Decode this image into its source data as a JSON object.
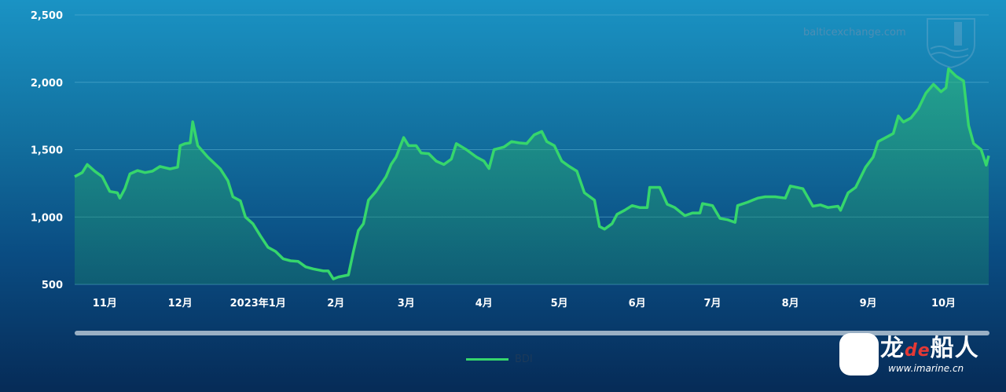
{
  "watermark": "balticexchange.com",
  "imarine_logo": {
    "text": "龙de船人",
    "url": "www.imarine.cn"
  },
  "colors": {
    "line": "#36d66c",
    "grid": "#5fb4d6",
    "bg_top": "#1a93c4",
    "bg_bottom": "#062b57"
  },
  "chart_data": {
    "type": "area",
    "title": "",
    "xlabel": "",
    "ylabel": "",
    "ylim": [
      500,
      2500
    ],
    "yticks": [
      500,
      1000,
      1500,
      2000,
      2500
    ],
    "ytick_labels": [
      "500",
      "1,000",
      "1,500",
      "2,000",
      "2,500"
    ],
    "xlim": [
      "2022-10-20",
      "2023-10-19"
    ],
    "xticks": [
      "2022-11-01",
      "2022-12-01",
      "2023-01-01",
      "2023-02-01",
      "2023-03-01",
      "2023-04-01",
      "2023-05-01",
      "2023-06-01",
      "2023-07-01",
      "2023-08-01",
      "2023-09-01",
      "2023-10-01"
    ],
    "xtick_labels": [
      "11月",
      "12月",
      "2023年1月",
      "2月",
      "3月",
      "4月",
      "5月",
      "6月",
      "7月",
      "8月",
      "9月",
      "10月"
    ],
    "grid": true,
    "legend": "bottom-center",
    "series": [
      {
        "name": "BDI",
        "x": [
          "2022-10-20",
          "2022-10-23",
          "2022-10-25",
          "2022-10-28",
          "2022-10-31",
          "2022-11-03",
          "2022-11-06",
          "2022-11-07",
          "2022-11-09",
          "2022-11-11",
          "2022-11-14",
          "2022-11-17",
          "2022-11-20",
          "2022-11-23",
          "2022-11-27",
          "2022-11-30",
          "2022-12-01",
          "2022-12-03",
          "2022-12-05",
          "2022-12-06",
          "2022-12-08",
          "2022-12-12",
          "2022-12-17",
          "2022-12-20",
          "2022-12-22",
          "2022-12-25",
          "2022-12-27",
          "2022-12-30",
          "2023-01-02",
          "2023-01-05",
          "2023-01-08",
          "2023-01-11",
          "2023-01-14",
          "2023-01-17",
          "2023-01-20",
          "2023-01-23",
          "2023-01-27",
          "2023-01-29",
          "2023-01-31",
          "2023-02-02",
          "2023-02-06",
          "2023-02-08",
          "2023-02-10",
          "2023-02-12",
          "2023-02-14",
          "2023-02-17",
          "2023-02-21",
          "2023-02-23",
          "2023-02-25",
          "2023-02-28",
          "2023-03-02",
          "2023-03-05",
          "2023-03-07",
          "2023-03-10",
          "2023-03-13",
          "2023-03-16",
          "2023-03-19",
          "2023-03-21",
          "2023-03-25",
          "2023-03-29",
          "2023-04-01",
          "2023-04-03",
          "2023-04-05",
          "2023-04-09",
          "2023-04-12",
          "2023-04-15",
          "2023-04-18",
          "2023-04-21",
          "2023-04-24",
          "2023-04-26",
          "2023-04-29",
          "2023-05-02",
          "2023-05-05",
          "2023-05-08",
          "2023-05-11",
          "2023-05-15",
          "2023-05-17",
          "2023-05-19",
          "2023-05-22",
          "2023-05-24",
          "2023-05-27",
          "2023-05-30",
          "2023-06-02",
          "2023-06-05",
          "2023-06-06",
          "2023-06-10",
          "2023-06-13",
          "2023-06-16",
          "2023-06-20",
          "2023-06-23",
          "2023-06-26",
          "2023-06-27",
          "2023-07-01",
          "2023-07-04",
          "2023-07-07",
          "2023-07-10",
          "2023-07-11",
          "2023-07-15",
          "2023-07-17",
          "2023-07-19",
          "2023-07-22",
          "2023-07-26",
          "2023-07-30",
          "2023-08-01",
          "2023-08-06",
          "2023-08-10",
          "2023-08-13",
          "2023-08-16",
          "2023-08-20",
          "2023-08-21",
          "2023-08-24",
          "2023-08-27",
          "2023-08-31",
          "2023-09-03",
          "2023-09-05",
          "2023-09-07",
          "2023-09-11",
          "2023-09-13",
          "2023-09-15",
          "2023-09-18",
          "2023-09-21",
          "2023-09-24",
          "2023-09-27",
          "2023-09-30",
          "2023-10-02",
          "2023-10-03",
          "2023-10-06",
          "2023-10-09",
          "2023-10-11",
          "2023-10-13",
          "2023-10-16",
          "2023-10-18",
          "2023-10-19"
        ],
        "values": [
          1300,
          1330,
          1390,
          1340,
          1300,
          1190,
          1180,
          1140,
          1210,
          1320,
          1345,
          1330,
          1340,
          1375,
          1357,
          1370,
          1530,
          1545,
          1550,
          1707,
          1530,
          1445,
          1357,
          1270,
          1150,
          1120,
          1000,
          950,
          860,
          775,
          745,
          690,
          675,
          670,
          630,
          615,
          600,
          600,
          540,
          555,
          570,
          745,
          900,
          950,
          1125,
          1190,
          1300,
          1390,
          1445,
          1590,
          1530,
          1530,
          1475,
          1470,
          1415,
          1390,
          1430,
          1545,
          1500,
          1445,
          1415,
          1360,
          1500,
          1520,
          1560,
          1550,
          1545,
          1610,
          1635,
          1560,
          1530,
          1415,
          1375,
          1340,
          1180,
          1125,
          930,
          910,
          950,
          1020,
          1050,
          1085,
          1070,
          1070,
          1220,
          1220,
          1095,
          1070,
          1010,
          1030,
          1030,
          1100,
          1085,
          990,
          980,
          960,
          1085,
          1110,
          1125,
          1140,
          1150,
          1150,
          1140,
          1230,
          1210,
          1080,
          1090,
          1070,
          1080,
          1050,
          1180,
          1220,
          1370,
          1445,
          1560,
          1580,
          1620,
          1750,
          1705,
          1735,
          1805,
          1920,
          1985,
          1930,
          1960,
          2100,
          2045,
          2010,
          1680,
          1545,
          1500,
          1385,
          1455
        ]
      }
    ]
  }
}
